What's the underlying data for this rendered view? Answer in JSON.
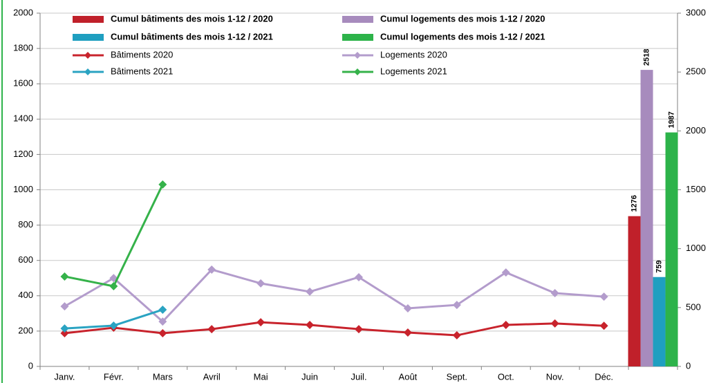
{
  "chart_data": {
    "type": "bar-line",
    "categories": [
      "Janv.",
      "Févr.",
      "Mars",
      "Avril",
      "Mai",
      "Juin",
      "Juil.",
      "Août",
      "Sept.",
      "Oct.",
      "Nov.",
      "Déc.",
      null
    ],
    "ylim": [
      0,
      2000
    ],
    "yticks": [
      0,
      200,
      400,
      600,
      800,
      1000,
      1200,
      1400,
      1600,
      1800,
      2000
    ],
    "y2lim": [
      0,
      3000
    ],
    "y2ticks": [
      0,
      500,
      1000,
      1500,
      2000,
      2500,
      3000
    ],
    "grid": true,
    "series": [
      {
        "name": "Cumul bâtiments des mois 1-12 / 2020",
        "type": "bar",
        "axis": "y2",
        "color": "#c0202a",
        "values": [
          null,
          null,
          null,
          null,
          null,
          null,
          null,
          null,
          null,
          null,
          null,
          null,
          1276
        ]
      },
      {
        "name": "Cumul logements des mois 1-12 / 2020",
        "type": "bar",
        "axis": "y2",
        "color": "#a78bbd",
        "values": [
          null,
          null,
          null,
          null,
          null,
          null,
          null,
          null,
          null,
          null,
          null,
          null,
          2518
        ]
      },
      {
        "name": "Cumul bâtiments des mois 1-12 / 2021",
        "type": "bar",
        "axis": "y2",
        "color": "#1f9fc0",
        "values": [
          null,
          null,
          null,
          null,
          null,
          null,
          null,
          null,
          null,
          null,
          null,
          null,
          759
        ]
      },
      {
        "name": "Cumul logements des mois 1-12 / 2021",
        "type": "bar",
        "axis": "y2",
        "color": "#2db34a",
        "values": [
          null,
          null,
          null,
          null,
          null,
          null,
          null,
          null,
          null,
          null,
          null,
          null,
          1987
        ]
      },
      {
        "name": "Bâtiments 2020",
        "type": "line",
        "color": "#c8232c",
        "values": [
          188,
          219,
          188,
          211,
          250,
          235,
          211,
          192,
          176,
          235,
          243,
          230,
          null
        ]
      },
      {
        "name": "Logements 2020",
        "type": "line",
        "color": "#b39ccc",
        "values": [
          340,
          500,
          254,
          548,
          470,
          423,
          505,
          329,
          348,
          532,
          415,
          395,
          null
        ]
      },
      {
        "name": "Bâtiments 2021",
        "type": "line",
        "color": "#2aa3c2",
        "values": [
          215,
          231,
          321,
          null,
          null,
          null,
          null,
          null,
          null,
          null,
          null,
          null,
          null
        ]
      },
      {
        "name": "Logements 2021",
        "type": "line",
        "color": "#35b24a",
        "values": [
          509,
          454,
          1030,
          null,
          null,
          null,
          null,
          null,
          null,
          null,
          null,
          null,
          null
        ]
      }
    ]
  }
}
